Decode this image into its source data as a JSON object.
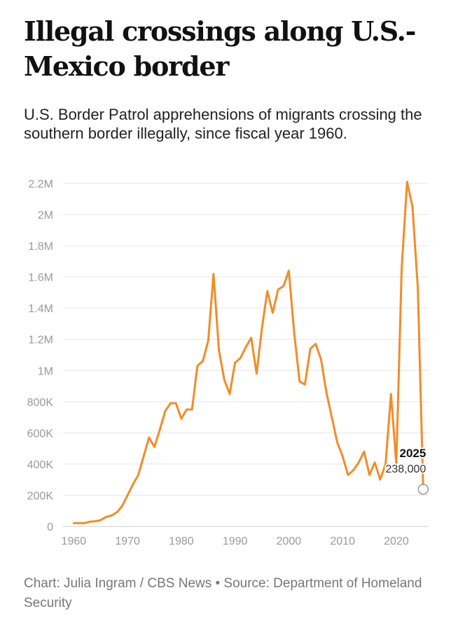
{
  "title": "Illegal crossings along U.S.-Mexico border",
  "subtitle": "U.S. Border Patrol apprehensions of migrants crossing the southern border illegally, since fiscal year 1960.",
  "credit": "Chart: Julia Ingram / CBS News • Source: Department of Homeland Security",
  "colors": {
    "line": "#f28c28",
    "grid": "#e6e6e6",
    "axis_text": "#9a9a9a",
    "baseline": "#cccccc"
  },
  "chart_data": {
    "type": "line",
    "title": "Illegal crossings along U.S.-Mexico border",
    "xlabel": "",
    "ylabel": "",
    "xlim": [
      1958,
      2026
    ],
    "ylim": [
      0,
      2200000
    ],
    "x_ticks": [
      1960,
      1970,
      1980,
      1990,
      2000,
      2010,
      2020
    ],
    "x_tick_labels": [
      "1960",
      "1970",
      "1980",
      "1990",
      "2000",
      "2010",
      "2020"
    ],
    "y_ticks": [
      0,
      200000,
      400000,
      600000,
      800000,
      1000000,
      1200000,
      1400000,
      1600000,
      1800000,
      2000000,
      2200000
    ],
    "y_tick_labels": [
      "0",
      "200K",
      "400K",
      "600K",
      "800K",
      "1M",
      "1.2M",
      "1.4M",
      "1.6M",
      "1.8M",
      "2M",
      "2.2M"
    ],
    "grid": true,
    "series": [
      {
        "name": "Apprehensions",
        "x": [
          1960,
          1961,
          1962,
          1963,
          1964,
          1965,
          1966,
          1967,
          1968,
          1969,
          1970,
          1971,
          1972,
          1973,
          1974,
          1975,
          1976,
          1977,
          1978,
          1979,
          1980,
          1981,
          1982,
          1983,
          1984,
          1985,
          1986,
          1987,
          1988,
          1989,
          1990,
          1991,
          1992,
          1993,
          1994,
          1995,
          1996,
          1997,
          1998,
          1999,
          2000,
          2001,
          2002,
          2003,
          2004,
          2005,
          2006,
          2007,
          2008,
          2009,
          2010,
          2011,
          2012,
          2013,
          2014,
          2015,
          2016,
          2017,
          2018,
          2019,
          2020,
          2021,
          2022,
          2023,
          2024,
          2025
        ],
        "values": [
          21000,
          21000,
          21000,
          30000,
          33000,
          40000,
          60000,
          70000,
          90000,
          130000,
          200000,
          270000,
          330000,
          450000,
          570000,
          510000,
          620000,
          740000,
          790000,
          790000,
          690000,
          750000,
          750000,
          1030000,
          1060000,
          1190000,
          1620000,
          1130000,
          940000,
          850000,
          1050000,
          1080000,
          1150000,
          1210000,
          980000,
          1270000,
          1510000,
          1370000,
          1520000,
          1540000,
          1640000,
          1240000,
          930000,
          910000,
          1140000,
          1170000,
          1070000,
          860000,
          700000,
          540000,
          450000,
          330000,
          360000,
          410000,
          480000,
          330000,
          410000,
          300000,
          400000,
          850000,
          400000,
          1660000,
          2210000,
          2050000,
          1530000,
          238000
        ]
      }
    ],
    "annotations": [
      {
        "year_label": "2025",
        "value_label": "238,000",
        "x": 2025,
        "y": 238000
      }
    ]
  }
}
